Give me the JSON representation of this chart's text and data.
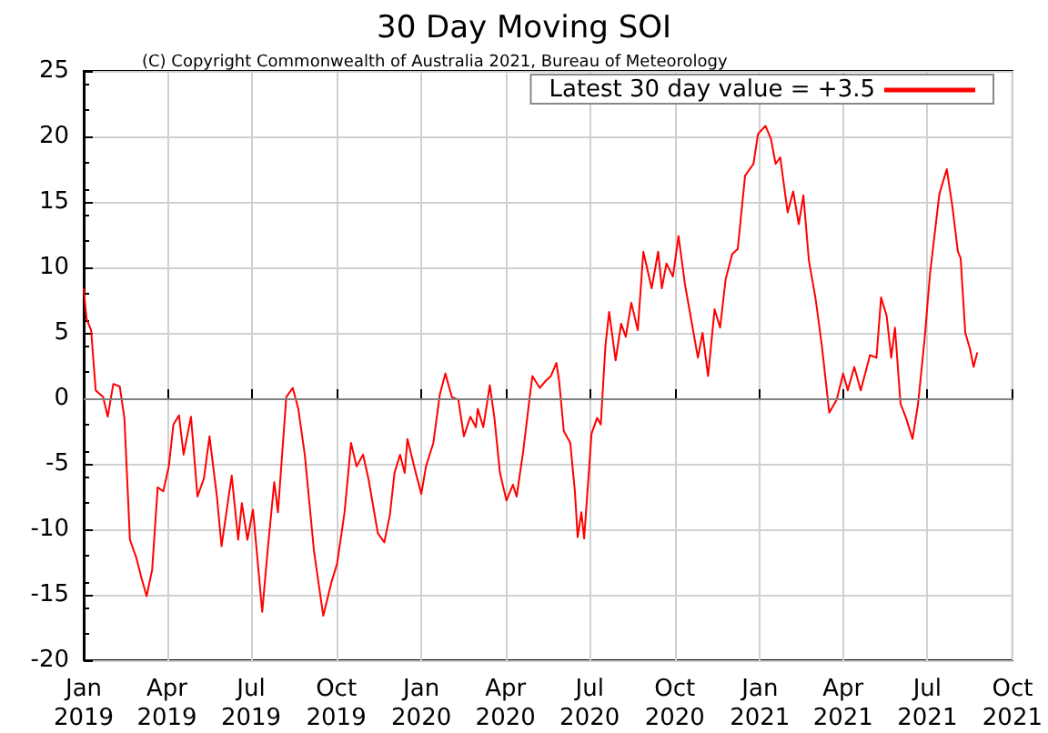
{
  "chart_data": {
    "type": "line",
    "title": "30 Day Moving SOI",
    "subtitle": "(C) Copyright Commonwealth of Australia 2021, Bureau of Meteorology",
    "x": [
      "2019-01-01",
      "2019-01-04",
      "2019-01-09",
      "2019-01-14",
      "2019-01-22",
      "2019-01-27",
      "2019-02-02",
      "2019-02-09",
      "2019-02-14",
      "2019-02-20",
      "2019-02-27",
      "2019-03-04",
      "2019-03-10",
      "2019-03-16",
      "2019-03-22",
      "2019-03-28",
      "2019-04-03",
      "2019-04-08",
      "2019-04-14",
      "2019-04-19",
      "2019-04-27",
      "2019-05-04",
      "2019-05-11",
      "2019-05-17",
      "2019-05-25",
      "2019-05-30",
      "2019-06-10",
      "2019-06-17",
      "2019-06-21",
      "2019-06-27",
      "2019-07-03",
      "2019-07-13",
      "2019-07-19",
      "2019-07-26",
      "2019-07-30",
      "2019-08-08",
      "2019-08-15",
      "2019-08-21",
      "2019-08-28",
      "2019-09-07",
      "2019-09-17",
      "2019-09-26",
      "2019-10-02",
      "2019-10-10",
      "2019-10-17",
      "2019-10-23",
      "2019-10-30",
      "2019-11-05",
      "2019-11-15",
      "2019-11-22",
      "2019-11-28",
      "2019-12-03",
      "2019-12-09",
      "2019-12-14",
      "2019-12-17",
      "2019-12-26",
      "2020-01-01",
      "2020-01-06",
      "2020-01-14",
      "2020-01-21",
      "2020-01-27",
      "2020-02-03",
      "2020-02-10",
      "2020-02-16",
      "2020-02-23",
      "2020-02-29",
      "2020-03-02",
      "2020-03-08",
      "2020-03-15",
      "2020-03-20",
      "2020-03-26",
      "2020-04-02",
      "2020-04-09",
      "2020-04-13",
      "2020-04-20",
      "2020-04-26",
      "2020-04-30",
      "2020-05-08",
      "2020-05-14",
      "2020-05-20",
      "2020-05-26",
      "2020-05-29",
      "2020-06-03",
      "2020-06-10",
      "2020-06-15",
      "2020-06-18",
      "2020-06-22",
      "2020-06-25",
      "2020-07-03",
      "2020-07-09",
      "2020-07-13",
      "2020-07-18",
      "2020-07-22",
      "2020-07-29",
      "2020-08-04",
      "2020-08-09",
      "2020-08-15",
      "2020-08-22",
      "2020-08-28",
      "2020-09-06",
      "2020-09-13",
      "2020-09-17",
      "2020-09-22",
      "2020-09-29",
      "2020-10-05",
      "2020-10-12",
      "2020-10-18",
      "2020-10-26",
      "2020-10-31",
      "2020-11-06",
      "2020-11-13",
      "2020-11-19",
      "2020-11-25",
      "2020-12-02",
      "2020-12-08",
      "2020-12-16",
      "2020-12-25",
      "2020-12-30",
      "2021-01-07",
      "2021-01-13",
      "2021-01-18",
      "2021-01-23",
      "2021-01-31",
      "2021-02-06",
      "2021-02-12",
      "2021-02-17",
      "2021-02-23",
      "2021-03-02",
      "2021-03-09",
      "2021-03-17",
      "2021-03-25",
      "2021-04-01",
      "2021-04-06",
      "2021-04-13",
      "2021-04-20",
      "2021-04-30",
      "2021-05-07",
      "2021-05-12",
      "2021-05-18",
      "2021-05-23",
      "2021-05-27",
      "2021-06-02",
      "2021-06-08",
      "2021-06-15",
      "2021-06-21",
      "2021-06-28",
      "2021-07-04",
      "2021-07-14",
      "2021-07-22",
      "2021-07-28",
      "2021-08-03",
      "2021-08-06",
      "2021-08-11",
      "2021-08-16",
      "2021-08-20",
      "2021-08-24"
    ],
    "series": [
      {
        "name": "Latest 30 day value = +3.5",
        "color": "#ff0000",
        "values": [
          8.4,
          6.1,
          5.2,
          0.6,
          0.1,
          -1.4,
          1.1,
          0.9,
          -1.5,
          -10.8,
          -12.2,
          -13.6,
          -15.1,
          -13.1,
          -6.8,
          -7.1,
          -5.2,
          -2.0,
          -1.3,
          -4.3,
          -1.4,
          -7.5,
          -6.1,
          -2.9,
          -7.5,
          -11.3,
          -5.9,
          -10.8,
          -8.0,
          -10.8,
          -8.5,
          -16.3,
          -11.5,
          -6.4,
          -8.7,
          0.1,
          0.8,
          -0.8,
          -4.3,
          -11.7,
          -16.6,
          -14.0,
          -12.6,
          -8.7,
          -3.4,
          -5.2,
          -4.3,
          -6.2,
          -10.3,
          -11.0,
          -8.9,
          -5.7,
          -4.3,
          -5.7,
          -3.1,
          -5.7,
          -7.3,
          -5.2,
          -3.4,
          0.3,
          1.9,
          0.1,
          -0.1,
          -2.9,
          -1.4,
          -2.2,
          -0.8,
          -2.2,
          1.0,
          -1.5,
          -5.7,
          -7.8,
          -6.6,
          -7.5,
          -4.1,
          -0.6,
          1.7,
          0.8,
          1.3,
          1.7,
          2.7,
          1.3,
          -2.5,
          -3.4,
          -7.1,
          -10.6,
          -8.7,
          -10.7,
          -2.7,
          -1.5,
          -2.0,
          4.0,
          6.6,
          2.9,
          5.7,
          4.7,
          7.3,
          5.2,
          11.2,
          8.4,
          11.2,
          8.4,
          10.3,
          9.3,
          12.4,
          8.7,
          6.3,
          3.1,
          5.0,
          1.7,
          6.8,
          5.4,
          9.1,
          11.0,
          11.4,
          17.0,
          17.9,
          20.2,
          20.8,
          19.8,
          17.9,
          18.4,
          14.2,
          15.8,
          13.3,
          15.5,
          10.5,
          7.7,
          4.0,
          -1.1,
          -0.1,
          1.9,
          0.6,
          2.4,
          0.6,
          3.3,
          3.1,
          7.7,
          6.3,
          3.1,
          5.4,
          -0.4,
          -1.5,
          -3.1,
          -0.4,
          4.5,
          9.6,
          15.6,
          17.5,
          14.7,
          11.2,
          10.7,
          5.0,
          3.8,
          2.4,
          3.5
        ]
      }
    ],
    "xlim": [
      "2019-01-01",
      "2021-10-01"
    ],
    "xticks": [
      {
        "value": "2019-01-01",
        "label": "Jan\n2019"
      },
      {
        "value": "2019-04-01",
        "label": "Apr\n2019"
      },
      {
        "value": "2019-07-01",
        "label": "Jul\n2019"
      },
      {
        "value": "2019-10-01",
        "label": "Oct\n2019"
      },
      {
        "value": "2020-01-01",
        "label": "Jan\n2020"
      },
      {
        "value": "2020-04-01",
        "label": "Apr\n2020"
      },
      {
        "value": "2020-07-01",
        "label": "Jul\n2020"
      },
      {
        "value": "2020-10-01",
        "label": "Oct\n2020"
      },
      {
        "value": "2021-01-01",
        "label": "Jan\n2021"
      },
      {
        "value": "2021-04-01",
        "label": "Apr\n2021"
      },
      {
        "value": "2021-07-01",
        "label": "Jul\n2021"
      },
      {
        "value": "2021-10-01",
        "label": "Oct\n2021"
      }
    ],
    "ylim": [
      -20,
      25
    ],
    "yticks": [
      -20,
      -15,
      -10,
      -5,
      0,
      5,
      10,
      15,
      20,
      25
    ],
    "ref_lines": [
      {
        "axis": "y",
        "value": 0,
        "color": "#808080"
      }
    ],
    "grid": true,
    "legend": "top right",
    "marker": "none",
    "line_style": "solid"
  }
}
